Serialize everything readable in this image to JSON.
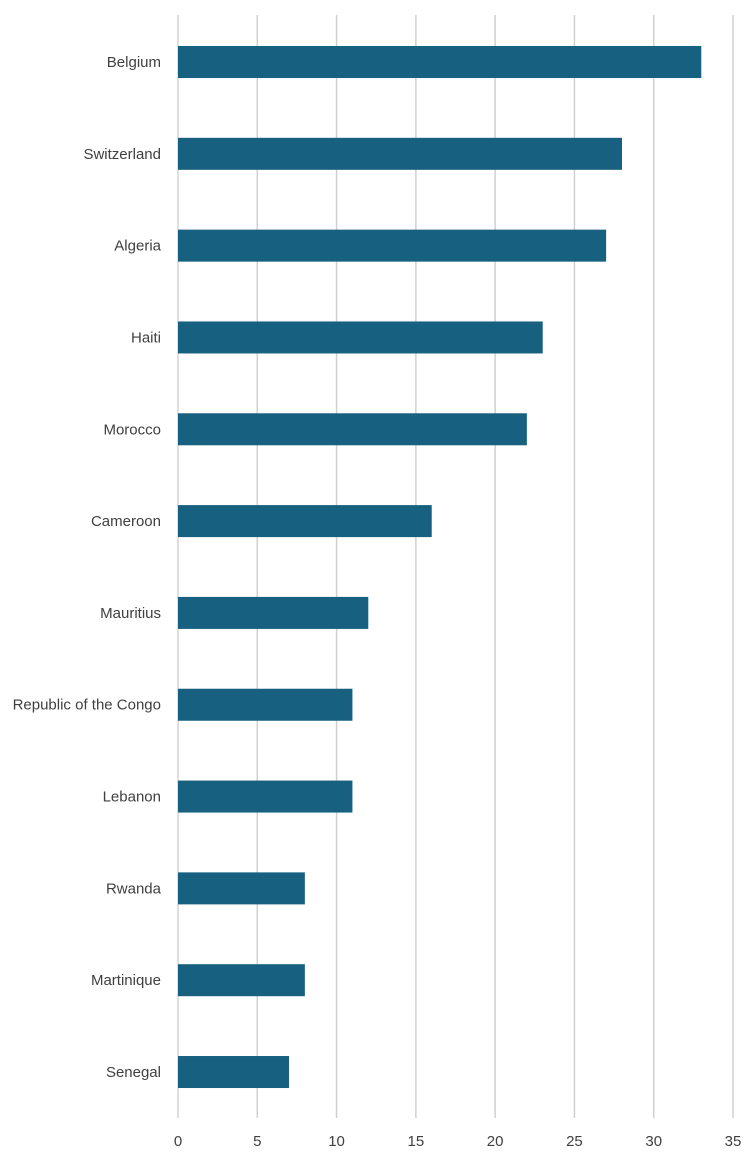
{
  "chart_data": {
    "type": "bar",
    "orientation": "horizontal",
    "title": "",
    "xlabel": "",
    "ylabel": "",
    "xlim": [
      0,
      35
    ],
    "ticks": [
      0,
      5,
      10,
      15,
      20,
      25,
      30,
      35
    ],
    "grid": "vertical gridlines",
    "legend": "none",
    "bar_color": "#17607f",
    "categories": [
      "Belgium",
      "Switzerland",
      "Algeria",
      "Haiti",
      "Morocco",
      "Cameroon",
      "Mauritius",
      "Republic of the Congo",
      "Lebanon",
      "Rwanda",
      "Martinique",
      "Senegal"
    ],
    "values": [
      33,
      28,
      27,
      23,
      22,
      16,
      12,
      11,
      11,
      8,
      8,
      7
    ]
  }
}
